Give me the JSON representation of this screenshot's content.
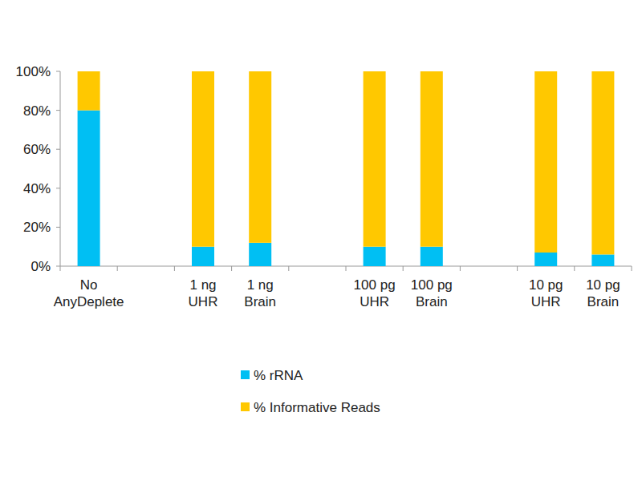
{
  "chart_data": {
    "type": "bar",
    "stacked": true,
    "legend": "bottom",
    "grid": false,
    "categories": [
      "No AnyDeplete",
      null,
      "1 ng UHR",
      "1 ng Brain",
      null,
      "100 pg UHR",
      "100 pg Brain",
      null,
      "10 pg UHR",
      "10 pg Brain"
    ],
    "series": [
      {
        "name": "% rRNA",
        "color": "#00bff3",
        "values": [
          80,
          null,
          10,
          12,
          null,
          10,
          10,
          null,
          7,
          6
        ]
      },
      {
        "name": "% Informative Reads",
        "color": "#ffc800",
        "values": [
          20,
          null,
          90,
          88,
          null,
          90,
          90,
          null,
          93,
          94
        ]
      }
    ],
    "ylim": [
      0,
      100
    ],
    "yticks": [
      {
        "value": 0,
        "label": "0%"
      },
      {
        "value": 20,
        "label": "20%"
      },
      {
        "value": 40,
        "label": "40%"
      },
      {
        "value": 60,
        "label": "60%"
      },
      {
        "value": 80,
        "label": "80%"
      },
      {
        "value": 100,
        "label": "100%"
      }
    ]
  }
}
